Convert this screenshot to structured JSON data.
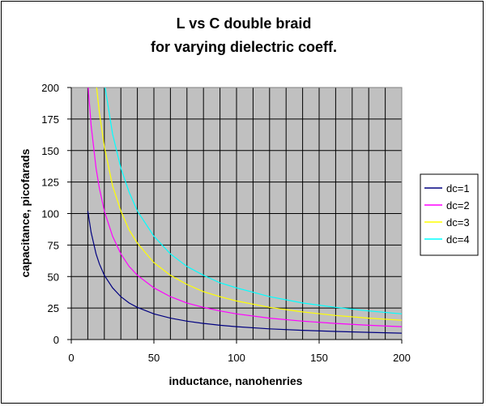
{
  "chart_data": {
    "type": "line",
    "title_line1": "L vs C double braid",
    "title_line2": "for varying dielectric coeff.",
    "xlabel": "inductance, nanohenries",
    "ylabel": "capacitance, picofarads",
    "xlim": [
      0,
      200
    ],
    "ylim": [
      0,
      200
    ],
    "xticks": [
      "0",
      "50",
      "100",
      "150",
      "200"
    ],
    "yticks": [
      "0",
      "25",
      "50",
      "75",
      "100",
      "125",
      "150",
      "175",
      "200"
    ],
    "grid": true,
    "plot_background": "#c0c0c0",
    "legend_position": "right",
    "series": [
      {
        "name": "dc=1",
        "color": "#000080",
        "x": [
          10,
          12,
          15,
          17,
          20,
          25,
          30,
          35,
          40,
          50,
          60,
          70,
          80,
          90,
          100,
          120,
          140,
          160,
          180,
          200
        ],
        "y": [
          102,
          85,
          68,
          60,
          51,
          41,
          34,
          29,
          25.5,
          20.4,
          17,
          14.6,
          12.8,
          11.3,
          10.2,
          8.5,
          7.3,
          6.4,
          5.7,
          5.1
        ]
      },
      {
        "name": "dc=2",
        "color": "#ff00ff",
        "x": [
          10,
          12,
          15,
          17,
          20,
          25,
          30,
          35,
          40,
          50,
          60,
          70,
          80,
          90,
          100,
          120,
          140,
          160,
          180,
          200
        ],
        "y": [
          204,
          170,
          136,
          120,
          102,
          82,
          68,
          58,
          51,
          41,
          34,
          29,
          25.5,
          22.7,
          20.4,
          17,
          14.6,
          12.8,
          11.3,
          10.2
        ]
      },
      {
        "name": "dc=3",
        "color": "#ffff00",
        "x": [
          15,
          17,
          20,
          25,
          30,
          35,
          40,
          50,
          60,
          70,
          80,
          90,
          100,
          120,
          140,
          160,
          180,
          200
        ],
        "y": [
          204,
          180,
          153,
          122,
          102,
          87,
          76.5,
          61,
          51,
          43.7,
          38,
          34,
          30.6,
          25.5,
          21.9,
          19.1,
          17,
          15.3
        ]
      },
      {
        "name": "dc=4",
        "color": "#00ffff",
        "x": [
          20,
          25,
          30,
          35,
          40,
          50,
          60,
          70,
          80,
          90,
          100,
          120,
          140,
          160,
          180,
          200
        ],
        "y": [
          204,
          163,
          136,
          117,
          102,
          82,
          68,
          58,
          51,
          45,
          41,
          34,
          29,
          25.5,
          22.7,
          20.4
        ]
      }
    ]
  }
}
